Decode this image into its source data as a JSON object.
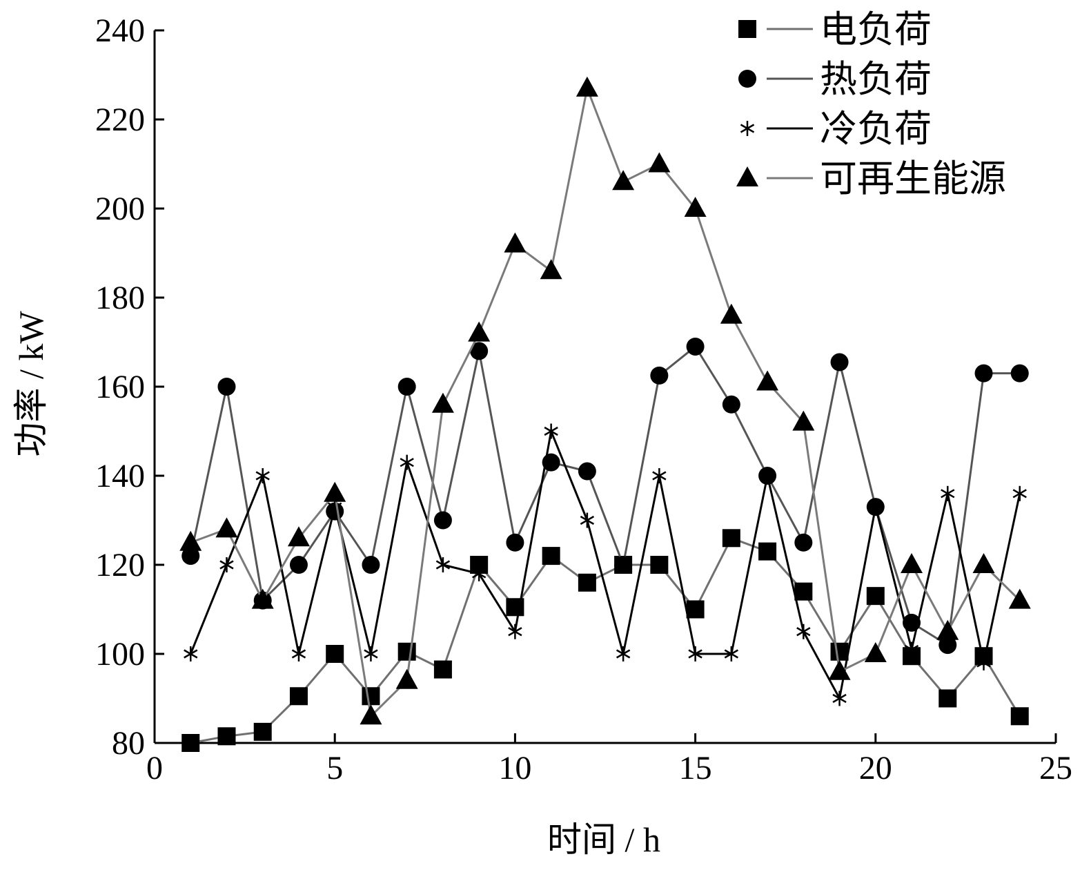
{
  "chart_data": {
    "type": "line",
    "xlabel": "时间 / h",
    "ylabel": "功率 / kW",
    "xlim": [
      0,
      25
    ],
    "ylim": [
      80,
      240
    ],
    "xticks": [
      0,
      5,
      10,
      15,
      20,
      25
    ],
    "yticks": [
      80,
      100,
      120,
      140,
      160,
      180,
      200,
      220,
      240
    ],
    "grid": false,
    "legend_position": "top-right",
    "x": [
      1,
      2,
      3,
      4,
      5,
      6,
      7,
      8,
      9,
      10,
      11,
      12,
      13,
      14,
      15,
      16,
      17,
      18,
      19,
      20,
      21,
      22,
      23,
      24
    ],
    "series": [
      {
        "name": "电负荷",
        "marker": "square",
        "color": "#707070",
        "values": [
          80,
          81.5,
          82.5,
          90.5,
          100,
          90.5,
          100.5,
          96.5,
          120,
          110.5,
          122,
          116,
          120,
          120,
          110,
          126,
          123,
          114,
          100.5,
          113,
          99.5,
          90,
          99.5,
          86
        ]
      },
      {
        "name": "热负荷",
        "marker": "circle",
        "color": "#555555",
        "values": [
          122,
          160,
          112,
          120,
          132,
          120,
          160,
          130,
          168,
          125,
          143,
          141,
          120,
          162.5,
          169,
          156,
          140,
          125,
          165.5,
          133,
          107,
          102,
          163,
          163
        ]
      },
      {
        "name": "冷负荷",
        "marker": "star",
        "color": "#000000",
        "values": [
          100,
          120,
          140,
          100,
          133,
          100,
          143,
          120,
          118,
          105,
          150,
          130,
          100,
          140,
          100,
          100,
          140,
          105,
          90,
          133,
          101,
          136,
          98,
          136
        ]
      },
      {
        "name": "可再生能源",
        "marker": "triangle",
        "color": "#7a7a7a",
        "values": [
          125,
          128,
          112,
          126,
          136,
          86,
          94,
          156,
          172,
          192,
          186,
          227,
          206,
          210,
          200,
          176,
          161,
          152,
          96,
          100,
          120,
          105,
          120,
          112
        ]
      }
    ]
  }
}
